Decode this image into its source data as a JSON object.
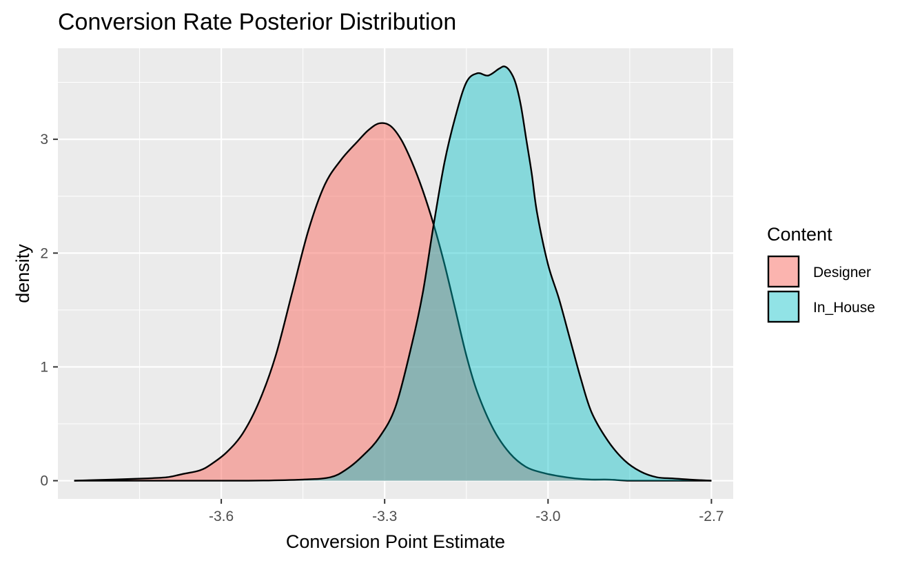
{
  "chart_data": {
    "type": "area",
    "subtype": "density",
    "title": "Conversion Rate Posterior Distribution",
    "xlabel": "Conversion Point Estimate",
    "ylabel": "density",
    "xlim": [
      -3.9,
      -2.66
    ],
    "ylim": [
      -0.16,
      3.8
    ],
    "x_ticks": [
      -3.6,
      -3.3,
      -3.0,
      -2.7
    ],
    "x_tick_labels": [
      "-3.6",
      "-3.3",
      "-3.0",
      "-2.7"
    ],
    "y_ticks": [
      0,
      1,
      2,
      3
    ],
    "y_tick_labels": [
      "0",
      "1",
      "2",
      "3"
    ],
    "grid": true,
    "legend": {
      "title": "Content",
      "position": "right"
    },
    "series": [
      {
        "name": "Designer",
        "color": "#f8766d",
        "opacity": 0.55,
        "x": [
          -3.87,
          -3.8,
          -3.74,
          -3.7,
          -3.67,
          -3.64,
          -3.62,
          -3.59,
          -3.56,
          -3.53,
          -3.5,
          -3.47,
          -3.44,
          -3.41,
          -3.38,
          -3.35,
          -3.33,
          -3.31,
          -3.29,
          -3.27,
          -3.25,
          -3.23,
          -3.21,
          -3.19,
          -3.17,
          -3.15,
          -3.13,
          -3.1,
          -3.07,
          -3.04,
          -3.01,
          -2.98,
          -2.95,
          -2.92,
          -2.89,
          -2.85,
          -2.8,
          -2.75,
          -2.7
        ],
        "y": [
          0.0,
          0.01,
          0.02,
          0.03,
          0.06,
          0.09,
          0.14,
          0.25,
          0.42,
          0.7,
          1.1,
          1.65,
          2.2,
          2.6,
          2.82,
          2.98,
          3.08,
          3.14,
          3.12,
          3.0,
          2.8,
          2.55,
          2.25,
          1.9,
          1.5,
          1.1,
          0.78,
          0.45,
          0.24,
          0.12,
          0.07,
          0.04,
          0.02,
          0.01,
          0.01,
          0.0,
          0.0,
          0.0,
          0.0
        ]
      },
      {
        "name": "In_House",
        "color": "#00bfc4",
        "opacity": 0.43,
        "x": [
          -3.87,
          -3.7,
          -3.55,
          -3.45,
          -3.4,
          -3.37,
          -3.34,
          -3.31,
          -3.28,
          -3.25,
          -3.23,
          -3.21,
          -3.19,
          -3.17,
          -3.15,
          -3.13,
          -3.11,
          -3.09,
          -3.08,
          -3.07,
          -3.06,
          -3.05,
          -3.04,
          -3.03,
          -3.02,
          -3.0,
          -2.98,
          -2.96,
          -2.94,
          -2.92,
          -2.89,
          -2.86,
          -2.83,
          -2.8,
          -2.77,
          -2.74,
          -2.7
        ],
        "y": [
          0.0,
          0.0,
          0.0,
          0.01,
          0.03,
          0.1,
          0.22,
          0.38,
          0.65,
          1.2,
          1.65,
          2.25,
          2.8,
          3.2,
          3.5,
          3.58,
          3.56,
          3.62,
          3.64,
          3.6,
          3.5,
          3.3,
          3.0,
          2.7,
          2.35,
          1.9,
          1.6,
          1.25,
          0.9,
          0.6,
          0.35,
          0.18,
          0.08,
          0.03,
          0.02,
          0.01,
          0.0
        ]
      }
    ]
  }
}
